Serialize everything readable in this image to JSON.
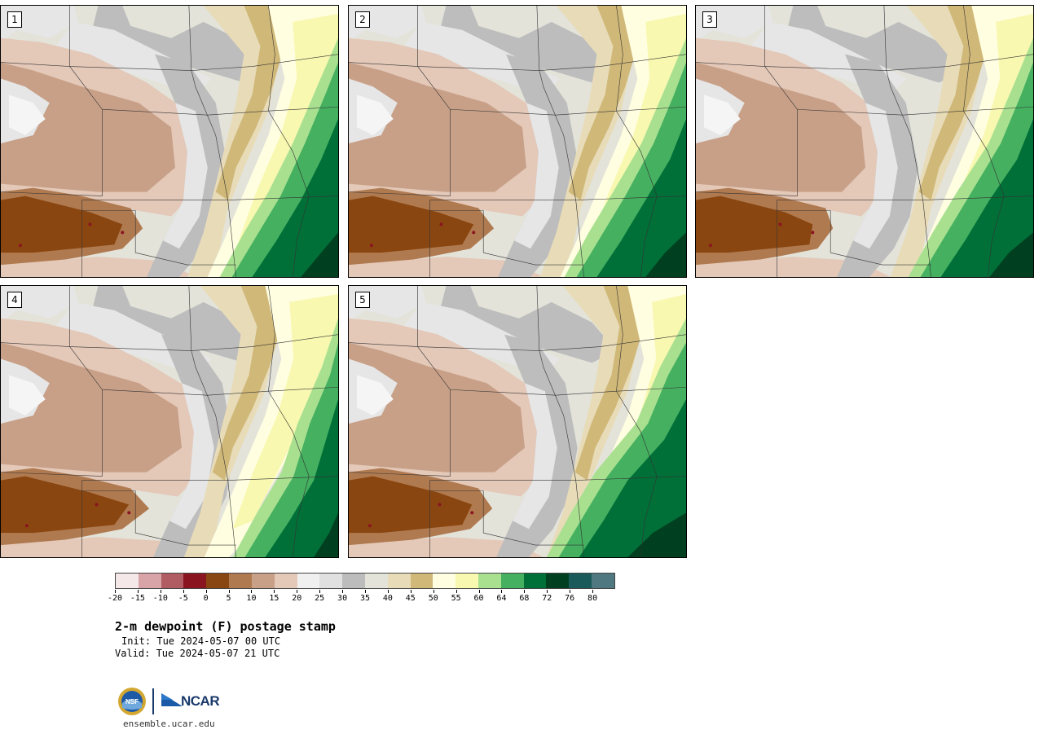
{
  "panels": [
    {
      "label": "1",
      "variant": 0
    },
    {
      "label": "2",
      "variant": 1
    },
    {
      "label": "3",
      "variant": 2
    },
    {
      "label": "4",
      "variant": 3
    },
    {
      "label": "5",
      "variant": 4
    }
  ],
  "legend": {
    "colors": [
      "#f4e8e8",
      "#d8a4a8",
      "#b05c62",
      "#8a1420",
      "#8a4610",
      "#b07a50",
      "#c8a088",
      "#e4c8b8",
      "#f0f0f0",
      "#e0e0e0",
      "#bcbcbc",
      "#e3e3da",
      "#e8dcb8",
      "#d0b878",
      "#fffee0",
      "#f8f8b0",
      "#a8e090",
      "#44b060",
      "#007038",
      "#004020",
      "#1a5a5a",
      "#507880"
    ],
    "tick_labels": [
      "-20",
      "-15",
      "-10",
      "-5",
      "0",
      "5",
      "10",
      "15",
      "20",
      "25",
      "30",
      "35",
      "40",
      "45",
      "50",
      "55",
      "60",
      "64",
      "68",
      "72",
      "76",
      "80"
    ]
  },
  "title": "2-m dewpoint (F) postage stamp",
  "init": "Init: Tue 2024-05-07 00 UTC",
  "valid": "Valid: Tue 2024-05-07 21 UTC",
  "logo": {
    "ncar": "NCAR",
    "nsf": "NSF"
  },
  "website": "ensemble.ucar.edu"
}
